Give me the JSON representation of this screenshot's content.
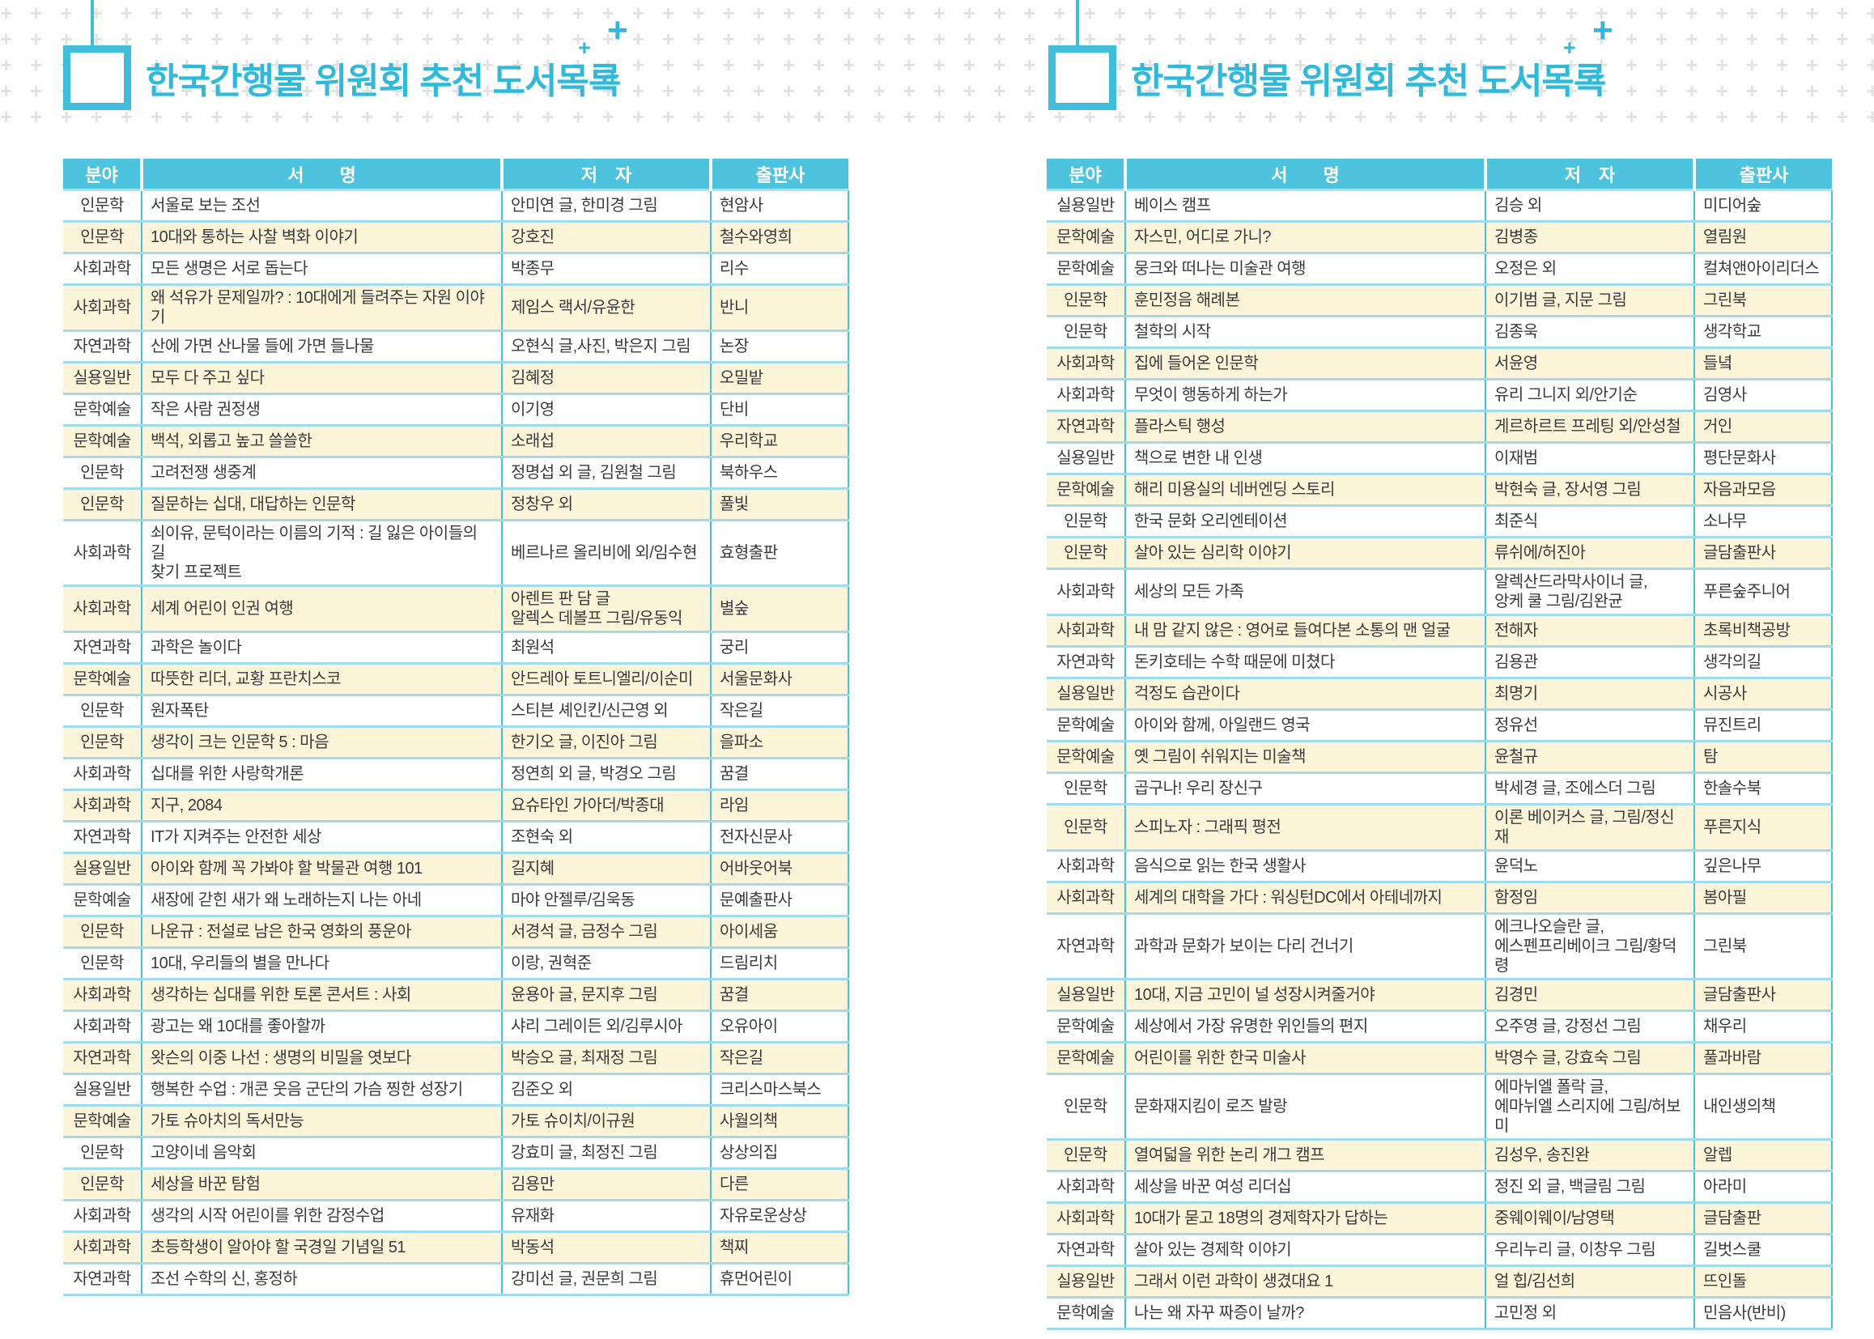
{
  "header": {
    "title": "한국간행물 위원회 추천 도서목록"
  },
  "decor": {
    "plus": "+"
  },
  "columns": {
    "field": "분야",
    "title": "서  명",
    "author": "저 자",
    "publisher": "출판사"
  },
  "colors": {
    "accent_cyan": "#3fbedc",
    "header_bg": "#4ec3de",
    "row_alt_bg": "#fcf5da",
    "row_rule": "#9edbec",
    "title_text": "#2fb9db",
    "grid_plus": "#e2e2e2",
    "body_text": "#3b3b3b"
  },
  "tables": [
    {
      "id": "left",
      "rows": [
        {
          "field": "인문학",
          "title": "서울로 보는 조선",
          "author": "안미연 글, 한미경 그림",
          "publisher": "현암사"
        },
        {
          "field": "인문학",
          "title": "10대와 통하는 사찰 벽화 이야기",
          "author": "강호진",
          "publisher": "철수와영희"
        },
        {
          "field": "사회과학",
          "title": "모든 생명은 서로 돕는다",
          "author": "박종무",
          "publisher": "리수"
        },
        {
          "field": "사회과학",
          "title": "왜 석유가 문제일까? : 10대에게 들려주는 자원 이야기",
          "author": "제임스 랙서/유윤한",
          "publisher": "반니"
        },
        {
          "field": "자연과학",
          "title": "산에 가면 산나물 들에 가면 들나물",
          "author": "오현식 글,사진, 박은지 그림",
          "publisher": "논장"
        },
        {
          "field": "실용일반",
          "title": "모두 다 주고 싶다",
          "author": "김혜정",
          "publisher": "오밀밭"
        },
        {
          "field": "문학예술",
          "title": "작은 사람 권정생",
          "author": "이기영",
          "publisher": "단비"
        },
        {
          "field": "문학예술",
          "title": "백석, 외롭고 높고 쓸쓸한",
          "author": "소래섭",
          "publisher": "우리학교"
        },
        {
          "field": "인문학",
          "title": "고려전쟁 생중계",
          "author": "정명섭 외 글, 김원철 그림",
          "publisher": "북하우스"
        },
        {
          "field": "인문학",
          "title": "질문하는 십대, 대답하는 인문학",
          "author": "정창우 외",
          "publisher": "풀빛"
        },
        {
          "field": "사회과학",
          "title": "쇠이유, 문턱이라는 이름의 기적 : 길 잃은 아이들의 길\n찾기 프로젝트",
          "author": "베르나르 올리비에 외/임수현",
          "publisher": "효형출판"
        },
        {
          "field": "사회과학",
          "title": "세계 어린이 인권 여행",
          "author": "아렌트 판 담 글\n알렉스 데볼프 그림/유동익",
          "publisher": "별숲"
        },
        {
          "field": "자연과학",
          "title": "과학은 놀이다",
          "author": "최원석",
          "publisher": "궁리"
        },
        {
          "field": "문학예술",
          "title": "따뜻한 리더, 교황 프란치스코",
          "author": "안드레아 토트니엘리/이순미",
          "publisher": "서울문화사"
        },
        {
          "field": "인문학",
          "title": "원자폭탄",
          "author": "스티븐 셰인킨/신근영 외",
          "publisher": "작은길"
        },
        {
          "field": "인문학",
          "title": "생각이 크는 인문학 5 : 마음",
          "author": "한기오 글, 이진아 그림",
          "publisher": "을파소"
        },
        {
          "field": "사회과학",
          "title": "십대를 위한 사랑학개론",
          "author": "정연희 외 글, 박경오 그림",
          "publisher": "꿈결"
        },
        {
          "field": "사회과학",
          "title": "지구, 2084",
          "author": "요슈타인 가아더/박종대",
          "publisher": "라임"
        },
        {
          "field": "자연과학",
          "title": "IT가 지켜주는 안전한 세상",
          "author": "조현숙 외",
          "publisher": "전자신문사"
        },
        {
          "field": "실용일반",
          "title": "아이와 함께 꼭 가봐야 할 박물관 여행 101",
          "author": "길지혜",
          "publisher": "어바웃어북"
        },
        {
          "field": "문학예술",
          "title": "새장에 갇힌 새가 왜 노래하는지 나는 아네",
          "author": "마야 안젤루/김욱동",
          "publisher": "문예출판사"
        },
        {
          "field": "인문학",
          "title": "나운규 : 전설로 남은 한국 영화의 풍운아",
          "author": "서경석 글, 금정수 그림",
          "publisher": "아이세움"
        },
        {
          "field": "인문학",
          "title": "10대, 우리들의 별을 만나다",
          "author": "이랑, 권혁준",
          "publisher": "드림리치"
        },
        {
          "field": "사회과학",
          "title": "생각하는 십대를 위한 토론 콘서트 : 사회",
          "author": "윤용아 글, 문지후 그림",
          "publisher": "꿈결"
        },
        {
          "field": "사회과학",
          "title": "광고는 왜 10대를 좋아할까",
          "author": "샤리 그레이든 외/김루시아",
          "publisher": "오유아이"
        },
        {
          "field": "자연과학",
          "title": "왓슨의 이중 나선 : 생명의 비밀을 엿보다",
          "author": "박승오 글, 최재정 그림",
          "publisher": "작은길"
        },
        {
          "field": "실용일반",
          "title": "행복한 수업 : 개콘 웃음 군단의 가슴 찡한 성장기",
          "author": "김준오 외",
          "publisher": "크리스마스북스"
        },
        {
          "field": "문학예술",
          "title": "가토 슈아치의 독서만능",
          "author": "가토 슈이치/이규원",
          "publisher": "사월의책"
        },
        {
          "field": "인문학",
          "title": "고양이네 음악회",
          "author": "강효미 글, 최정진 그림",
          "publisher": "상상의집"
        },
        {
          "field": "인문학",
          "title": "세상을 바꾼 탐험",
          "author": "김용만",
          "publisher": "다른"
        },
        {
          "field": "사회과학",
          "title": "생각의 시작 어린이를 위한 감정수업",
          "author": "유재화",
          "publisher": "자유로운상상"
        },
        {
          "field": "사회과학",
          "title": "초등학생이 알아야 할 국경일 기념일 51",
          "author": "박동석",
          "publisher": "책찌"
        },
        {
          "field": "자연과학",
          "title": "조선 수학의 신, 홍정하",
          "author": "강미선 글, 권문희 그림",
          "publisher": "휴먼어린이"
        }
      ]
    },
    {
      "id": "right",
      "rows": [
        {
          "field": "실용일반",
          "title": "베이스 캠프",
          "author": "김승 외",
          "publisher": "미디어숲"
        },
        {
          "field": "문학예술",
          "title": "자스민, 어디로 가니?",
          "author": "김병종",
          "publisher": "열림원"
        },
        {
          "field": "문학예술",
          "title": "뭉크와 떠나는 미술관 여행",
          "author": "오정은 외",
          "publisher": "컬쳐앤아이리더스"
        },
        {
          "field": "인문학",
          "title": "훈민정음 해례본",
          "author": "이기범 글, 지문 그림",
          "publisher": "그린북"
        },
        {
          "field": "인문학",
          "title": "철학의 시작",
          "author": "김종욱",
          "publisher": "생각학교"
        },
        {
          "field": "사회과학",
          "title": "집에 들어온 인문학",
          "author": "서윤영",
          "publisher": "들녘"
        },
        {
          "field": "사회과학",
          "title": "무엇이 행동하게 하는가",
          "author": "유리 그니지 외/안기순",
          "publisher": "김영사"
        },
        {
          "field": "자연과학",
          "title": "플라스틱 행성",
          "author": "게르하르트 프레팅 외/안성철",
          "publisher": "거인"
        },
        {
          "field": "실용일반",
          "title": "책으로 변한 내 인생",
          "author": "이재범",
          "publisher": "평단문화사"
        },
        {
          "field": "문학예술",
          "title": "해리 미용실의 네버엔딩 스토리",
          "author": "박현숙 글, 장서영 그림",
          "publisher": "자음과모음"
        },
        {
          "field": "인문학",
          "title": "한국 문화 오리엔테이션",
          "author": "최준식",
          "publisher": "소나무"
        },
        {
          "field": "인문학",
          "title": "살아 있는 심리학 이야기",
          "author": "류쉬에/허진아",
          "publisher": "글담출판사"
        },
        {
          "field": "사회과학",
          "title": "세상의 모든 가족",
          "author": "알렉산드라막사이너 글,\n앙케 쿨 그림/김완균",
          "publisher": "푸른숲주니어"
        },
        {
          "field": "사회과학",
          "title": "내 맘 같지 않은 : 영어로 들여다본 소통의 맨 얼굴",
          "author": "전해자",
          "publisher": "초록비책공방"
        },
        {
          "field": "자연과학",
          "title": "돈키호테는 수학 때문에 미쳤다",
          "author": "김용관",
          "publisher": "생각의길"
        },
        {
          "field": "실용일반",
          "title": "걱정도 습관이다",
          "author": "최명기",
          "publisher": "시공사"
        },
        {
          "field": "문학예술",
          "title": "아이와 함께, 아일랜드 영국",
          "author": "정유선",
          "publisher": "뮤진트리"
        },
        {
          "field": "문학예술",
          "title": "옛 그림이 쉬워지는 미술책",
          "author": "윤철규",
          "publisher": "탐"
        },
        {
          "field": "인문학",
          "title": "곱구나! 우리 장신구",
          "author": "박세경 글, 조에스더 그림",
          "publisher": "한솔수북"
        },
        {
          "field": "인문학",
          "title": "스피노자 : 그래픽 평전",
          "author": "이론 베이커스 글, 그림/정신재",
          "publisher": "푸른지식"
        },
        {
          "field": "사회과학",
          "title": "음식으로 읽는 한국 생활사",
          "author": "윤덕노",
          "publisher": "깊은나무"
        },
        {
          "field": "사회과학",
          "title": "세계의 대학을 가다 : 워싱턴DC에서 아테네까지",
          "author": "함정임",
          "publisher": "봄아필"
        },
        {
          "field": "자연과학",
          "title": "과학과 문화가 보이는 다리 건너기",
          "author": "에크나오슬란 글,\n에스펜프리베이크 그림/황덕령",
          "publisher": "그린북"
        },
        {
          "field": "실용일반",
          "title": "10대, 지금 고민이 널 성장시켜줄거야",
          "author": "김경민",
          "publisher": "글담출판사"
        },
        {
          "field": "문학예술",
          "title": "세상에서 가장 유명한 위인들의 편지",
          "author": "오주영 글, 강정선 그림",
          "publisher": "채우리"
        },
        {
          "field": "문학예술",
          "title": "어린이를 위한 한국 미술사",
          "author": "박영수 글, 강효숙 그림",
          "publisher": "풀과바람"
        },
        {
          "field": "인문학",
          "title": "문화재지킴이 로즈 발랑",
          "author": "에마뉘엘 폴락 글,\n에마뉘엘 스리지에 그림/허보미",
          "publisher": "내인생의책"
        },
        {
          "field": "인문학",
          "title": "열여덟을 위한 논리 개그 캠프",
          "author": "김성우, 송진완",
          "publisher": "알렙"
        },
        {
          "field": "사회과학",
          "title": "세상을 바꾼 여성 리더십",
          "author": "정진 외 글, 백글림 그림",
          "publisher": "아라미"
        },
        {
          "field": "사회과학",
          "title": "10대가 묻고 18명의 경제학자가 답하는",
          "author": "중웨이웨이/남영택",
          "publisher": "글담출판"
        },
        {
          "field": "자연과학",
          "title": "살아 있는 경제학 이야기",
          "author": "우리누리 글, 이창우 그림",
          "publisher": "길벗스쿨"
        },
        {
          "field": "실용일반",
          "title": "그래서 이런 과학이 생겼대요 1",
          "author": "얼 힙/김선희",
          "publisher": "뜨인돌"
        },
        {
          "field": "문학예술",
          "title": "나는 왜 자꾸 짜증이 날까?",
          "author": "고민정 외",
          "publisher": "민음사(반비)"
        }
      ]
    }
  ]
}
